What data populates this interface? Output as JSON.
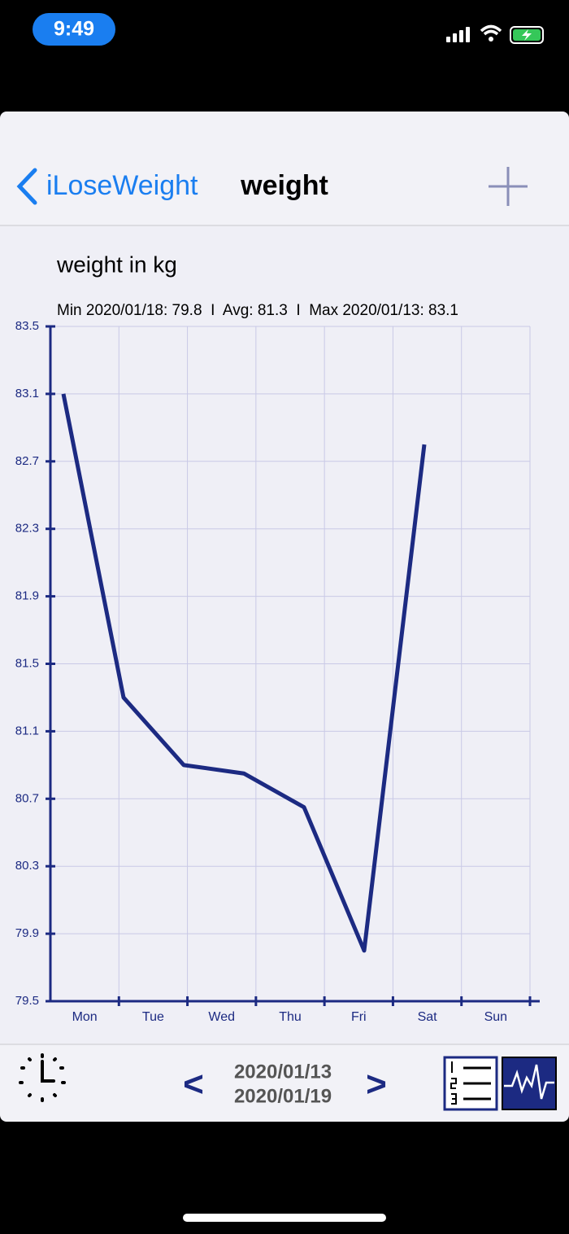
{
  "status_bar": {
    "time": "9:49"
  },
  "nav": {
    "back": "iLoseWeight",
    "title": "weight"
  },
  "chart_data": {
    "type": "line",
    "title": "weight in kg",
    "subtitle": "Min 2020/01/18: 79.8  I  Avg: 81.3  I  Max 2020/01/13: 83.1",
    "categories": [
      "Mon",
      "Tue",
      "Wed",
      "Thu",
      "Fri",
      "Sat",
      "Sun"
    ],
    "series": [
      {
        "color": "#1c2a82",
        "values": [
          83.1,
          81.3,
          80.9,
          80.85,
          80.65,
          79.8,
          82.8
        ]
      }
    ],
    "ylim": [
      79.5,
      83.5
    ],
    "yticks": [
      79.5,
      79.9,
      80.3,
      80.7,
      81.1,
      81.5,
      81.9,
      82.3,
      82.7,
      83.1,
      83.5
    ],
    "grid": true
  },
  "footer": {
    "prev": "<",
    "start": "2020/01/13",
    "end": "2020/01/19",
    "next": ">"
  }
}
